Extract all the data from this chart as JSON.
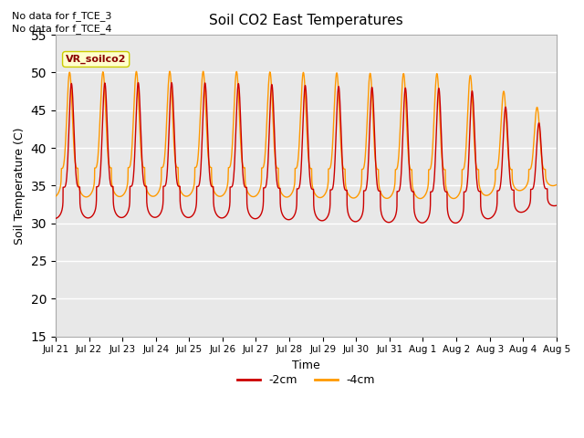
{
  "title": "Soil CO2 East Temperatures",
  "xlabel": "Time",
  "ylabel": "Soil Temperature (C)",
  "ylim": [
    15,
    55
  ],
  "line_colors": [
    "#cc0000",
    "#ff9900"
  ],
  "line_labels": [
    "-2cm",
    "-4cm"
  ],
  "no_data_texts": [
    "No data for f_TCE_3",
    "No data for f_TCE_4"
  ],
  "vr_label": "VR_soilco2",
  "bg_color": "#e8e8e8",
  "xtick_labels": [
    "Jul 21",
    "Jul 22",
    "Jul 23",
    "Jul 24",
    "Jul 25",
    "Jul 26",
    "Jul 27",
    "Jul 28",
    "Jul 29",
    "Jul 30",
    "Jul 31",
    "Aug 1",
    "Aug 2",
    "Aug 3",
    "Aug 4",
    "Aug 5"
  ],
  "grid_color": "#ffffff",
  "n_points": 4000,
  "n_days": 15
}
